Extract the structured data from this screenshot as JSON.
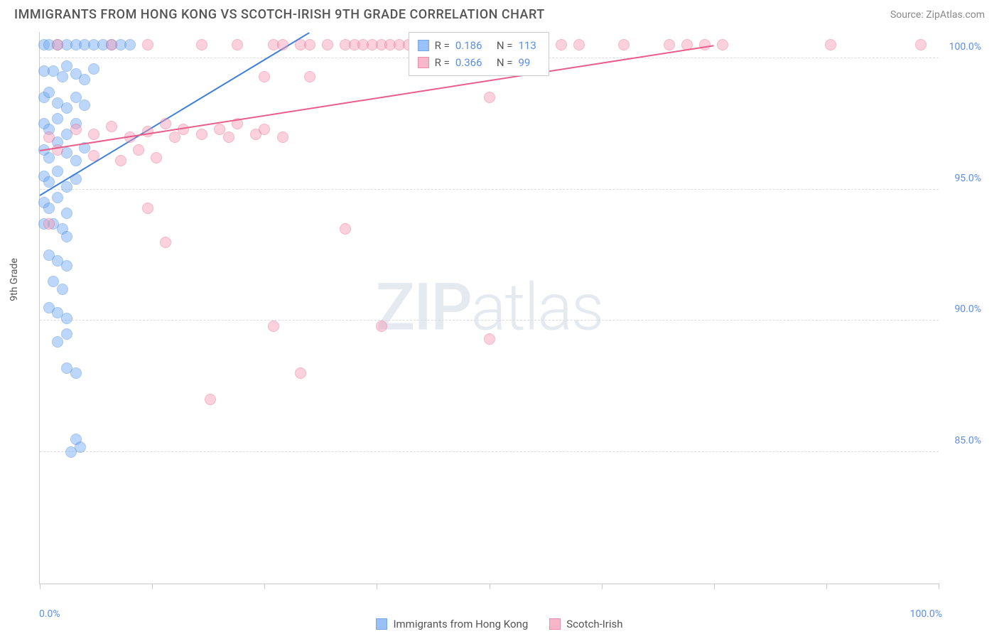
{
  "header": {
    "title": "IMMIGRANTS FROM HONG KONG VS SCOTCH-IRISH 9TH GRADE CORRELATION CHART",
    "source": "Source: ZipAtlas.com"
  },
  "watermark": {
    "zip": "ZIP",
    "atlas": "atlas"
  },
  "chart": {
    "type": "scatter",
    "y_axis_label": "9th Grade",
    "xlim": [
      0,
      100
    ],
    "ylim": [
      80,
      101
    ],
    "x_tick_positions": [
      0,
      12.5,
      25,
      37.5,
      50,
      62.5,
      75,
      87.5,
      100
    ],
    "x_tick_labels": {
      "left": "0.0%",
      "right": "100.0%"
    },
    "y_gridlines": [
      85,
      90,
      95,
      100
    ],
    "y_tick_labels": [
      "85.0%",
      "90.0%",
      "95.0%",
      "100.0%"
    ],
    "grid_color": "#dddddd",
    "background_color": "#ffffff",
    "marker_radius": 8,
    "marker_opacity": 0.45,
    "series": [
      {
        "name": "Immigrants from Hong Kong",
        "fill": "#6fa8f5",
        "stroke": "#3d7fd9",
        "R": "0.186",
        "N": "113",
        "trend": {
          "x1": 0,
          "y1": 94.8,
          "x2": 30,
          "y2": 101
        },
        "points": [
          [
            0.5,
            100.5
          ],
          [
            1,
            100.5
          ],
          [
            2,
            100.5
          ],
          [
            3,
            100.5
          ],
          [
            4,
            100.5
          ],
          [
            5,
            100.5
          ],
          [
            6,
            100.5
          ],
          [
            7,
            100.5
          ],
          [
            8,
            100.5
          ],
          [
            9,
            100.5
          ],
          [
            10,
            100.5
          ],
          [
            0.5,
            99.5
          ],
          [
            1.5,
            99.5
          ],
          [
            2.5,
            99.3
          ],
          [
            3,
            99.7
          ],
          [
            4,
            99.4
          ],
          [
            5,
            99.2
          ],
          [
            6,
            99.6
          ],
          [
            0.5,
            98.5
          ],
          [
            1,
            98.7
          ],
          [
            2,
            98.3
          ],
          [
            3,
            98.1
          ],
          [
            4,
            98.5
          ],
          [
            5,
            98.2
          ],
          [
            0.5,
            97.5
          ],
          [
            1,
            97.3
          ],
          [
            2,
            97.7
          ],
          [
            3,
            97.1
          ],
          [
            4,
            97.5
          ],
          [
            0.5,
            96.5
          ],
          [
            1,
            96.2
          ],
          [
            2,
            96.8
          ],
          [
            3,
            96.4
          ],
          [
            4,
            96.1
          ],
          [
            5,
            96.6
          ],
          [
            0.5,
            95.5
          ],
          [
            1,
            95.3
          ],
          [
            2,
            95.7
          ],
          [
            3,
            95.1
          ],
          [
            4,
            95.4
          ],
          [
            0.5,
            94.5
          ],
          [
            1,
            94.3
          ],
          [
            2,
            94.7
          ],
          [
            3,
            94.1
          ],
          [
            0.5,
            93.7
          ],
          [
            1.5,
            93.7
          ],
          [
            2.5,
            93.5
          ],
          [
            3,
            93.2
          ],
          [
            1,
            92.5
          ],
          [
            2,
            92.3
          ],
          [
            3,
            92.1
          ],
          [
            1.5,
            91.5
          ],
          [
            2.5,
            91.2
          ],
          [
            1,
            90.5
          ],
          [
            2,
            90.3
          ],
          [
            3,
            90.1
          ],
          [
            2,
            89.2
          ],
          [
            3,
            89.5
          ],
          [
            3,
            88.2
          ],
          [
            4,
            88.0
          ],
          [
            3.5,
            85.0
          ],
          [
            4.5,
            85.2
          ],
          [
            4,
            85.5
          ]
        ]
      },
      {
        "name": "Scotch-Irish",
        "fill": "#f59ab5",
        "stroke": "#e95d8a",
        "R": "0.366",
        "N": "99",
        "trend": {
          "x1": 0,
          "y1": 96.5,
          "x2": 75,
          "y2": 100.5
        },
        "points": [
          [
            2,
            100.5
          ],
          [
            8,
            100.5
          ],
          [
            12,
            100.5
          ],
          [
            18,
            100.5
          ],
          [
            22,
            100.5
          ],
          [
            26,
            100.5
          ],
          [
            27,
            100.5
          ],
          [
            29,
            100.5
          ],
          [
            30,
            100.5
          ],
          [
            32,
            100.5
          ],
          [
            34,
            100.5
          ],
          [
            35,
            100.5
          ],
          [
            36,
            100.5
          ],
          [
            37,
            100.5
          ],
          [
            38,
            100.5
          ],
          [
            39,
            100.5
          ],
          [
            40,
            100.5
          ],
          [
            41,
            100.5
          ],
          [
            42,
            100.5
          ],
          [
            44,
            100.5
          ],
          [
            47,
            100.5
          ],
          [
            50,
            100.5
          ],
          [
            55,
            100.5
          ],
          [
            58,
            100.5
          ],
          [
            60,
            100.5
          ],
          [
            65,
            100.5
          ],
          [
            70,
            100.5
          ],
          [
            72,
            100.5
          ],
          [
            74,
            100.5
          ],
          [
            76,
            100.5
          ],
          [
            88,
            100.5
          ],
          [
            98,
            100.5
          ],
          [
            25,
            99.3
          ],
          [
            30,
            99.3
          ],
          [
            50,
            98.5
          ],
          [
            1,
            97.0
          ],
          [
            4,
            97.3
          ],
          [
            6,
            97.1
          ],
          [
            8,
            97.4
          ],
          [
            10,
            97.0
          ],
          [
            12,
            97.2
          ],
          [
            14,
            97.5
          ],
          [
            15,
            97.0
          ],
          [
            16,
            97.3
          ],
          [
            18,
            97.1
          ],
          [
            20,
            97.3
          ],
          [
            21,
            97.0
          ],
          [
            22,
            97.5
          ],
          [
            24,
            97.1
          ],
          [
            25,
            97.3
          ],
          [
            27,
            97.0
          ],
          [
            2,
            96.5
          ],
          [
            6,
            96.3
          ],
          [
            9,
            96.1
          ],
          [
            11,
            96.5
          ],
          [
            13,
            96.2
          ],
          [
            1,
            93.7
          ],
          [
            14,
            93.0
          ],
          [
            12,
            94.3
          ],
          [
            34,
            93.5
          ],
          [
            26,
            89.8
          ],
          [
            38,
            89.8
          ],
          [
            50,
            89.3
          ],
          [
            19,
            87.0
          ],
          [
            29,
            88.0
          ]
        ]
      }
    ]
  },
  "legend_top": {
    "r_label": "R =",
    "n_label": "N ="
  },
  "legend_bottom": {
    "items": [
      "Immigrants from Hong Kong",
      "Scotch-Irish"
    ]
  }
}
